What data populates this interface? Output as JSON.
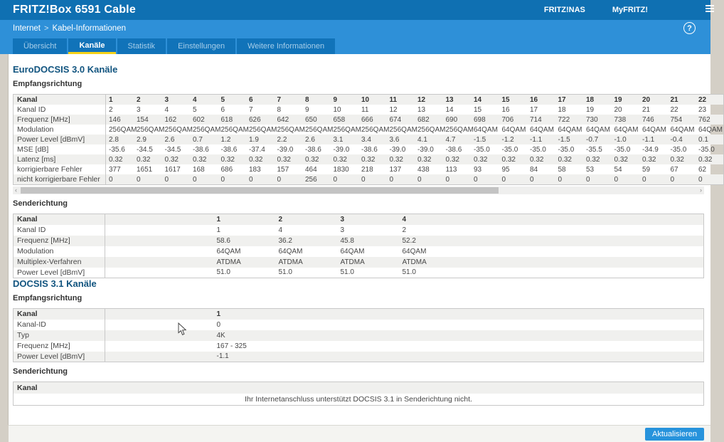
{
  "colors": {
    "header_bar": "#0f70b2",
    "nav_bar": "#2e90d8",
    "tab_bg": "#1173b9",
    "tab_active_underline": "#f5d117",
    "section_title": "#11547f",
    "row_stripe": "#f0f0ee",
    "button": "#2793dc"
  },
  "header": {
    "title": "FRITZ!Box 6591 Cable",
    "nas_link": "FRITZ!NAS",
    "myfritz_link": "MyFRITZ!"
  },
  "breadcrumb": {
    "section": "Internet",
    "separator": ">",
    "page": "Kabel-Informationen",
    "help": "?"
  },
  "tabs": [
    {
      "label": "Übersicht"
    },
    {
      "label": "Kanäle",
      "active": true
    },
    {
      "label": "Statistik"
    },
    {
      "label": "Einstellungen"
    },
    {
      "label": "Weitere Informationen"
    }
  ],
  "docsis30": {
    "title": "EuroDOCSIS 3.0 Kanäle",
    "downstream": {
      "heading": "Empfangsrichtung",
      "rows": [
        {
          "label": "Kanal",
          "header": true,
          "values": [
            "1",
            "2",
            "3",
            "4",
            "5",
            "6",
            "7",
            "8",
            "9",
            "10",
            "11",
            "12",
            "13",
            "14",
            "15",
            "16",
            "17",
            "18",
            "19",
            "20",
            "21",
            "22"
          ]
        },
        {
          "label": "Kanal ID",
          "values": [
            "2",
            "3",
            "4",
            "5",
            "6",
            "7",
            "8",
            "9",
            "10",
            "11",
            "12",
            "13",
            "14",
            "15",
            "16",
            "17",
            "18",
            "19",
            "20",
            "21",
            "22",
            "23"
          ]
        },
        {
          "label": "Frequenz [MHz]",
          "values": [
            "146",
            "154",
            "162",
            "602",
            "618",
            "626",
            "642",
            "650",
            "658",
            "666",
            "674",
            "682",
            "690",
            "698",
            "706",
            "714",
            "722",
            "730",
            "738",
            "746",
            "754",
            "762"
          ]
        },
        {
          "label": "Modulation",
          "values": [
            "256QAM",
            "256QAM",
            "256QAM",
            "256QAM",
            "256QAM",
            "256QAM",
            "256QAM",
            "256QAM",
            "256QAM",
            "256QAM",
            "256QAM",
            "256QAM",
            "256QAM",
            "64QAM",
            "64QAM",
            "64QAM",
            "64QAM",
            "64QAM",
            "64QAM",
            "64QAM",
            "64QAM",
            "64QAM"
          ]
        },
        {
          "label": "Power Level [dBmV]",
          "values": [
            "2.8",
            "2.9",
            "2.6",
            "0.7",
            "1.2",
            "1.9",
            "2.2",
            "2.6",
            "3.1",
            "3.4",
            "3.6",
            "4.1",
            "4.7",
            "-1.5",
            "-1.2",
            "-1.1",
            "-1.5",
            "-0.7",
            "-1.0",
            "-1.1",
            "-0.4",
            "0.1"
          ]
        },
        {
          "label": "MSE [dB]",
          "values": [
            "-35.6",
            "-34.5",
            "-34.5",
            "-38.6",
            "-38.6",
            "-37.4",
            "-39.0",
            "-38.6",
            "-39.0",
            "-38.6",
            "-39.0",
            "-39.0",
            "-38.6",
            "-35.0",
            "-35.0",
            "-35.0",
            "-35.0",
            "-35.5",
            "-35.0",
            "-34.9",
            "-35.0",
            "-35.0"
          ]
        },
        {
          "label": "Latenz [ms]",
          "values": [
            "0.32",
            "0.32",
            "0.32",
            "0.32",
            "0.32",
            "0.32",
            "0.32",
            "0.32",
            "0.32",
            "0.32",
            "0.32",
            "0.32",
            "0.32",
            "0.32",
            "0.32",
            "0.32",
            "0.32",
            "0.32",
            "0.32",
            "0.32",
            "0.32",
            "0.32"
          ]
        },
        {
          "label": "korrigierbare Fehler",
          "values": [
            "377",
            "1651",
            "1617",
            "168",
            "686",
            "183",
            "157",
            "464",
            "1830",
            "218",
            "137",
            "438",
            "113",
            "93",
            "95",
            "84",
            "58",
            "53",
            "54",
            "59",
            "67",
            "62"
          ]
        },
        {
          "label": "nicht korrigierbare Fehler",
          "values": [
            "0",
            "0",
            "0",
            "0",
            "0",
            "0",
            "0",
            "256",
            "0",
            "0",
            "0",
            "0",
            "0",
            "0",
            "0",
            "0",
            "0",
            "0",
            "0",
            "0",
            "0",
            "0"
          ]
        }
      ]
    },
    "upstream": {
      "heading": "Senderichtung",
      "rows": [
        {
          "label": "Kanal",
          "header": true,
          "values": [
            "1",
            "2",
            "3",
            "4"
          ]
        },
        {
          "label": "Kanal ID",
          "values": [
            "1",
            "4",
            "3",
            "2"
          ]
        },
        {
          "label": "Frequenz [MHz]",
          "values": [
            "58.6",
            "36.2",
            "45.8",
            "52.2"
          ]
        },
        {
          "label": "Modulation",
          "values": [
            "64QAM",
            "64QAM",
            "64QAM",
            "64QAM"
          ]
        },
        {
          "label": "Multiplex-Verfahren",
          "values": [
            "ATDMA",
            "ATDMA",
            "ATDMA",
            "ATDMA"
          ]
        },
        {
          "label": "Power Level [dBmV]",
          "values": [
            "51.0",
            "51.0",
            "51.0",
            "51.0"
          ]
        }
      ]
    }
  },
  "docsis31": {
    "title": "DOCSIS 3.1 Kanäle",
    "downstream": {
      "heading": "Empfangsrichtung",
      "rows": [
        {
          "label": "Kanal",
          "header": true,
          "values": [
            "1"
          ]
        },
        {
          "label": "Kanal-ID",
          "values": [
            "0"
          ]
        },
        {
          "label": "Typ",
          "values": [
            "4K"
          ]
        },
        {
          "label": "Frequenz [MHz]",
          "values": [
            "167 - 325"
          ]
        },
        {
          "label": "Power Level [dBmV]",
          "values": [
            "-1.1"
          ]
        }
      ]
    },
    "upstream": {
      "heading": "Senderichtung",
      "table_header": "Kanal",
      "message": "Ihr Internetanschluss unterstützt DOCSIS 3.1 in Senderichtung nicht."
    }
  },
  "footer": {
    "refresh_label": "Aktualisieren"
  }
}
